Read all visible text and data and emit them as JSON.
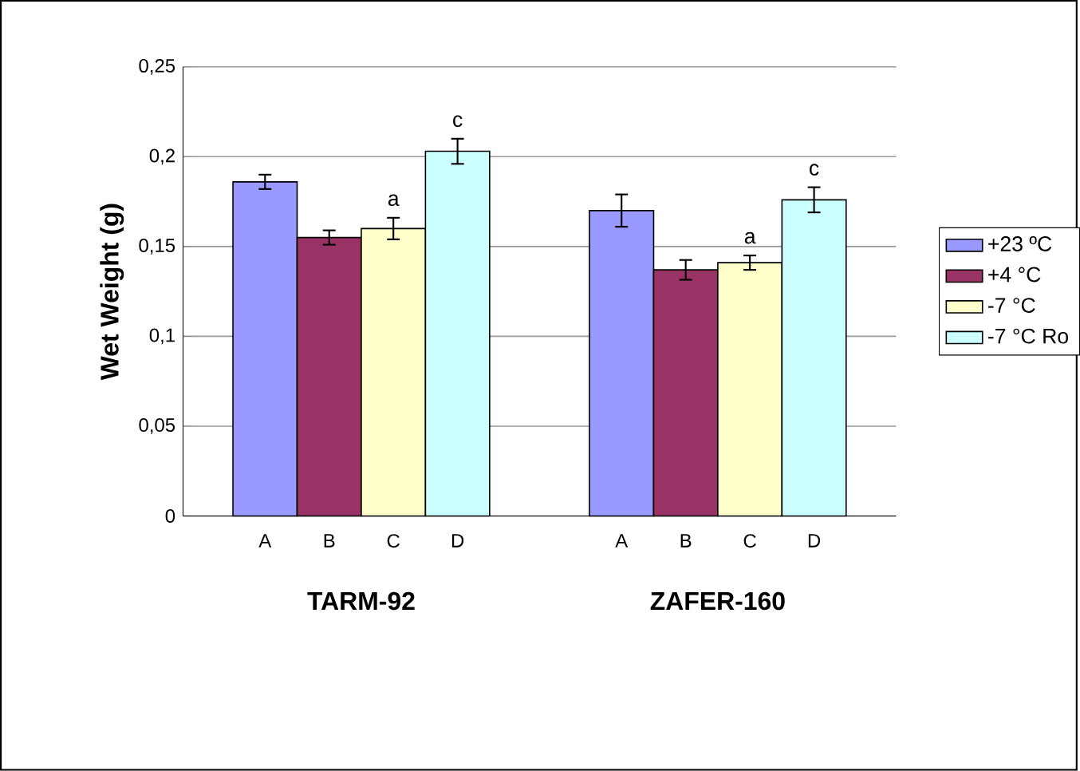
{
  "chart_data": {
    "type": "bar",
    "ylabel": "Wet Weight (g)",
    "categories": [
      "TARM-92",
      "ZAFER-160"
    ],
    "series": [
      {
        "name": "+23 ºC",
        "color": "#9999ff",
        "values": [
          0.186,
          0.17
        ],
        "errors": [
          0.004,
          0.009
        ]
      },
      {
        "name": "+4 °C",
        "color": "#993366",
        "values": [
          0.155,
          0.137
        ],
        "errors": [
          0.004,
          0.0055
        ]
      },
      {
        "name": "-7 °C",
        "color": "#ffffcc",
        "values": [
          0.16,
          0.141
        ],
        "errors": [
          0.006,
          0.004
        ],
        "value_labels": [
          "a",
          "a"
        ]
      },
      {
        "name": "-7 °C Ro",
        "color": "#ccffff",
        "values": [
          0.203,
          0.176
        ],
        "errors": [
          0.007,
          0.007
        ],
        "value_labels": [
          "c",
          "c"
        ]
      }
    ],
    "annotations": [
      "A",
      "B",
      "C",
      "D",
      "A",
      "B",
      "C",
      "D"
    ],
    "ylim": [
      0,
      0.25
    ],
    "yticks": [
      {
        "value": 0,
        "label": "0"
      },
      {
        "value": 0.05,
        "label": "0,05"
      },
      {
        "value": 0.1,
        "label": "0,1"
      },
      {
        "value": 0.15,
        "label": "0,15"
      },
      {
        "value": 0.2,
        "label": "0,2"
      },
      {
        "value": 0.25,
        "label": "0,25"
      }
    ],
    "grid": "y",
    "legend": "right"
  }
}
